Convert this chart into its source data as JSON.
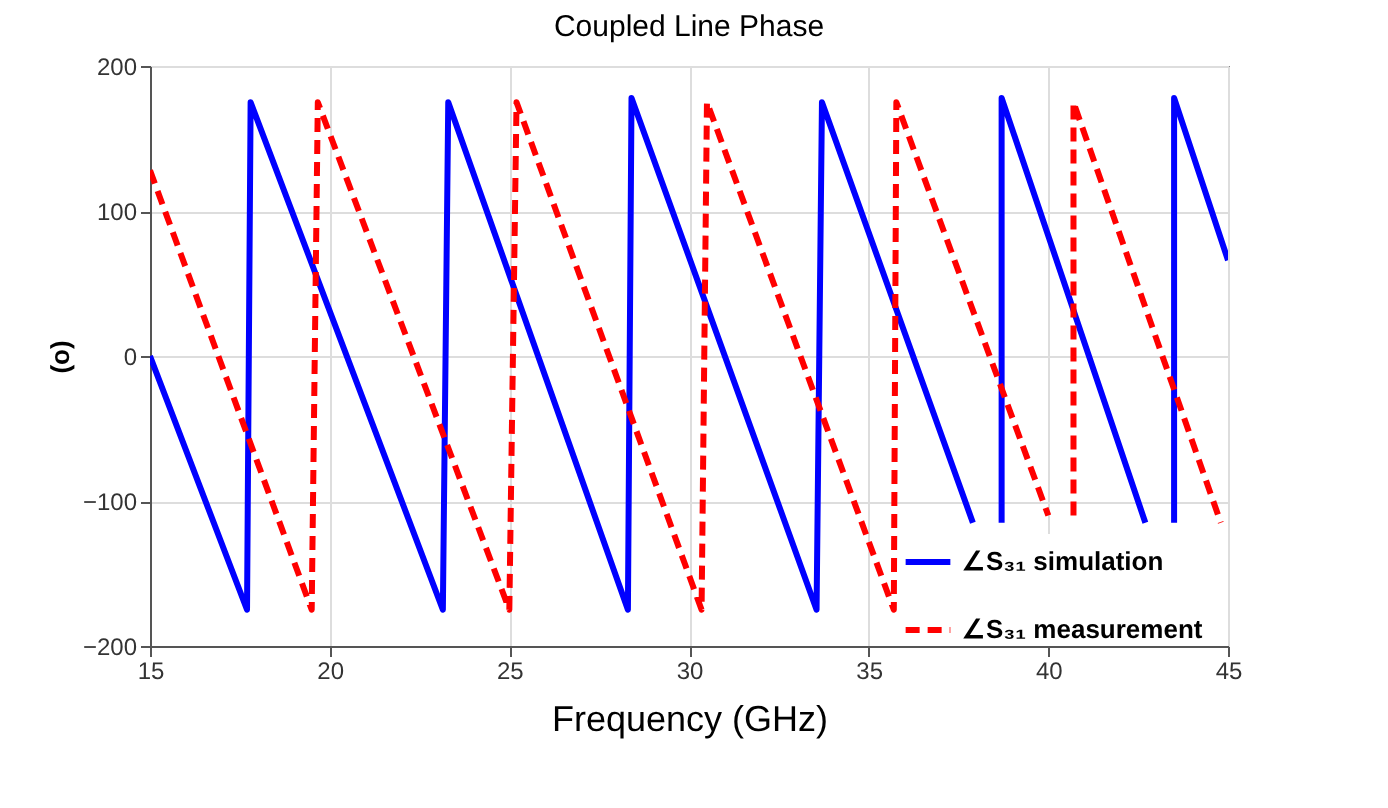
{
  "chart_data": {
    "type": "line",
    "title": "Coupled Line Phase",
    "xlabel": "Frequency (GHz)",
    "ylabel": "(o)",
    "xlim": [
      15,
      45
    ],
    "xticks": [
      15,
      20,
      25,
      30,
      35,
      40,
      45
    ],
    "ylim": [
      -200,
      200
    ],
    "yticks": [
      -200,
      -100,
      0,
      100,
      200
    ],
    "grid": true,
    "legend": "bottom right",
    "series": [
      {
        "name": "∠S₃₁ simulation",
        "color": "#0000ff",
        "line_style": "solid",
        "x": [
          15,
          17.7,
          17.8,
          23.15,
          23.3,
          28.3,
          28.4,
          33.55,
          33.7,
          37.9,
          38.3,
          38.7,
          38.7,
          42.7,
          43.1,
          43.5,
          43.5,
          45
        ],
        "values": [
          0,
          -175,
          175,
          -175,
          175,
          -175,
          178,
          -175,
          175,
          -115,
          null,
          -115,
          178,
          -115,
          null,
          -115,
          178,
          66
        ]
      },
      {
        "name": "∠S₃₁ measurement",
        "color": "#ff0000",
        "line_style": "dashed",
        "x": [
          15,
          19.5,
          19.67,
          25.0,
          25.2,
          30.35,
          30.5,
          35.7,
          35.77,
          40.0,
          40.35,
          40.7,
          40.7,
          44.8
        ],
        "values": [
          128,
          -175,
          175,
          -175,
          175,
          -175,
          175,
          -175,
          175,
          -110,
          null,
          -110,
          175,
          -115
        ]
      }
    ]
  }
}
